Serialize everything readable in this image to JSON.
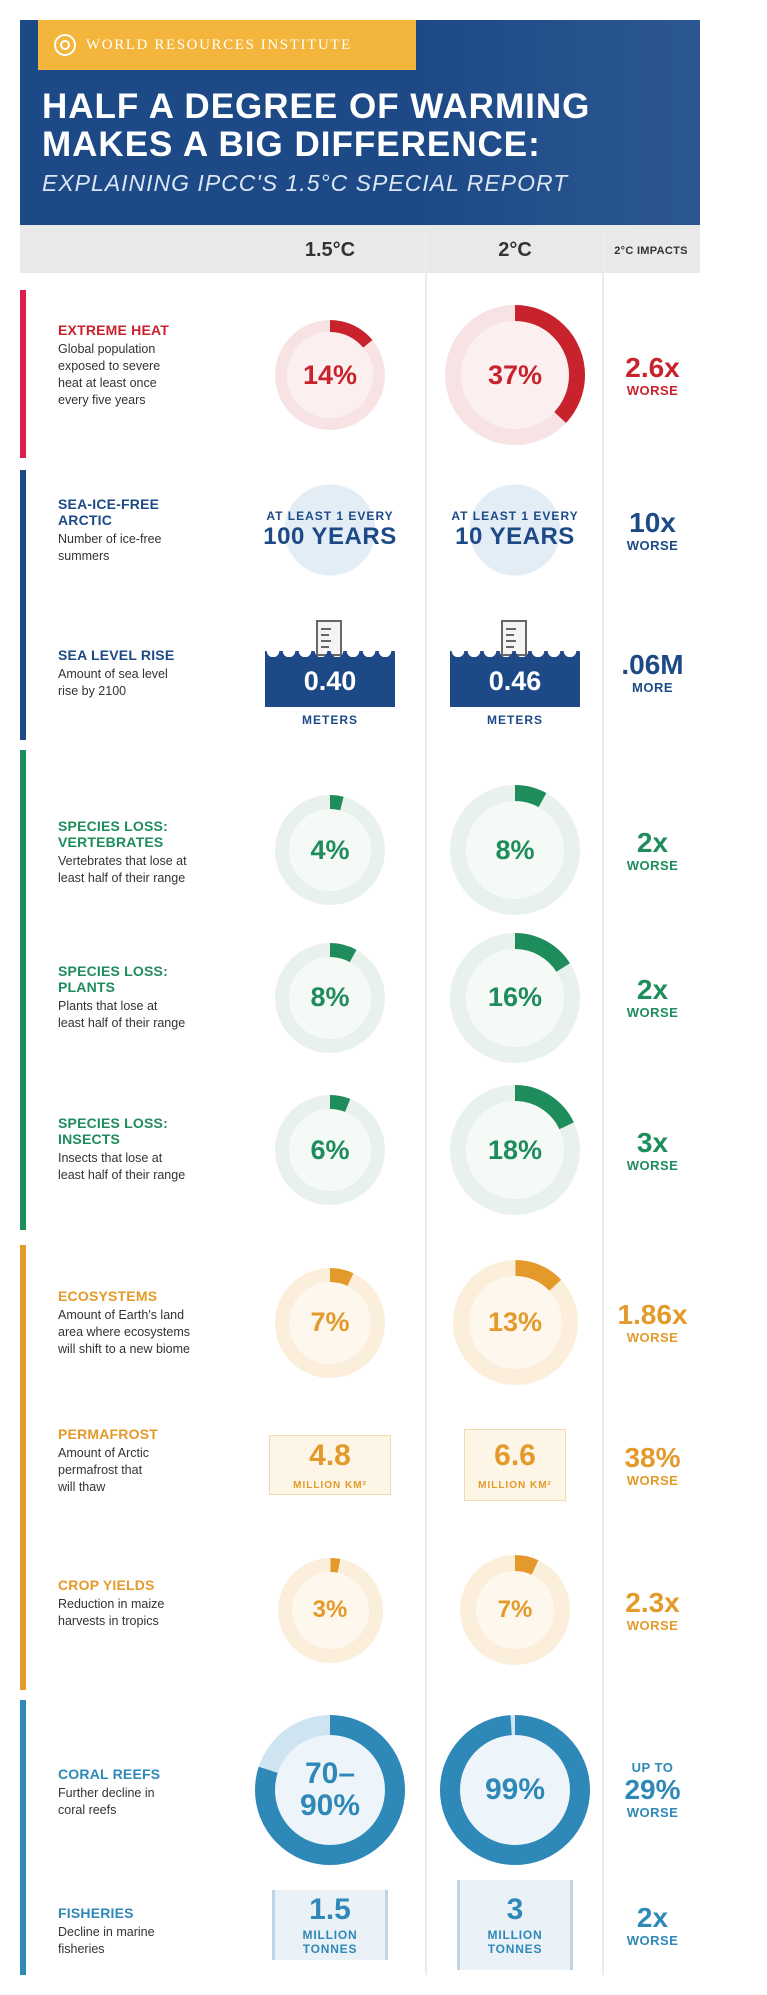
{
  "colors": {
    "header_blue": "#1d4a87",
    "logo_gold": "#f3b53b",
    "heat_red": "#c8232c",
    "arctic_blue": "#1d4a87",
    "species_green": "#1f8c5c",
    "eco_orange": "#e49a2a",
    "ocean_blue": "#2e88b8"
  },
  "header": {
    "logo_icon": "globe-icon",
    "logo_text": "WORLD RESOURCES INSTITUTE",
    "title_line1": "HALF A DEGREE OF WARMING",
    "title_line2": "MAKES A BIG DIFFERENCE:",
    "subtitle": "EXPLAINING IPCC'S 1.5°C SPECIAL REPORT"
  },
  "columns": {
    "c15": "1.5°C",
    "c2": "2°C",
    "impacts": "2°C IMPACTS"
  },
  "rows": {
    "extreme_heat": {
      "title": "EXTREME HEAT",
      "desc": "Global population\nexposed to severe\nheat at least once\nevery five years",
      "v15": "14%",
      "v2": "37%",
      "p15": 0.14,
      "p2": 0.37,
      "impact": "2.6x",
      "impact_label": "WORSE"
    },
    "arctic": {
      "title": "SEA-ICE-FREE\nARCTIC",
      "desc": "Number of ice-free\nsummers",
      "v15_top": "AT LEAST 1 EVERY",
      "v15_main": "100 YEARS",
      "v2_top": "AT LEAST 1 EVERY",
      "v2_main": "10 YEARS",
      "impact": "10x",
      "impact_label": "WORSE"
    },
    "sea_level": {
      "title": "SEA LEVEL RISE",
      "desc": "Amount of sea level\nrise by 2100",
      "v15": "0.40",
      "v2": "0.46",
      "unit": "METERS",
      "impact": ".06M",
      "impact_label": "MORE"
    },
    "vertebrates": {
      "title": "SPECIES LOSS:\nVERTEBRATES",
      "desc": "Vertebrates that lose at\nleast half of their range",
      "v15": "4%",
      "v2": "8%",
      "p15": 0.04,
      "p2": 0.08,
      "impact": "2x",
      "impact_label": "WORSE",
      "icon": "lizard-icon"
    },
    "plants": {
      "title": "SPECIES LOSS:\nPLANTS",
      "desc": "Plants that lose at\nleast half of their range",
      "v15": "8%",
      "v2": "16%",
      "p15": 0.08,
      "p2": 0.16,
      "impact": "2x",
      "impact_label": "WORSE",
      "icon": "tree-icon"
    },
    "insects": {
      "title": "SPECIES LOSS:\nINSECTS",
      "desc": "Insects that lose at\nleast half of their range",
      "v15": "6%",
      "v2": "18%",
      "p15": 0.06,
      "p2": 0.18,
      "impact": "3x",
      "impact_label": "WORSE",
      "icon": "insect-icon"
    },
    "ecosystems": {
      "title": "ECOSYSTEMS",
      "desc": "Amount of Earth's land\narea where ecosystems\nwill shift to a new biome",
      "v15": "7%",
      "v2": "13%",
      "p15": 0.07,
      "p2": 0.13,
      "impact": "1.86x",
      "impact_label": "WORSE"
    },
    "permafrost": {
      "title": "PERMAFROST",
      "desc": "Amount of Arctic\npermafrost that\nwill thaw",
      "v15": "4.8",
      "v2": "6.6",
      "unit": "MILLION KM²",
      "impact": "38%",
      "impact_label": "WORSE"
    },
    "crop": {
      "title": "CROP YIELDS",
      "desc": "Reduction in maize\nharvests in tropics",
      "v15": "3%",
      "v2": "7%",
      "p15": 0.03,
      "p2": 0.07,
      "impact": "2.3x",
      "impact_label": "WORSE"
    },
    "coral": {
      "title": "CORAL REEFS",
      "desc": "Further decline in\ncoral reefs",
      "v15_line1": "70–",
      "v15_line2": "90%",
      "v2": "99%",
      "p15": 0.8,
      "p2": 0.99,
      "impact_top": "UP TO",
      "impact": "29%",
      "impact_label": "WORSE"
    },
    "fisheries": {
      "title": "FISHERIES",
      "desc": "Decline in marine\nfisheries",
      "v15": "1.5",
      "v2": "3",
      "unit_line1": "MILLION",
      "unit_line2": "TONNES",
      "impact": "2x",
      "impact_label": "WORSE"
    }
  }
}
